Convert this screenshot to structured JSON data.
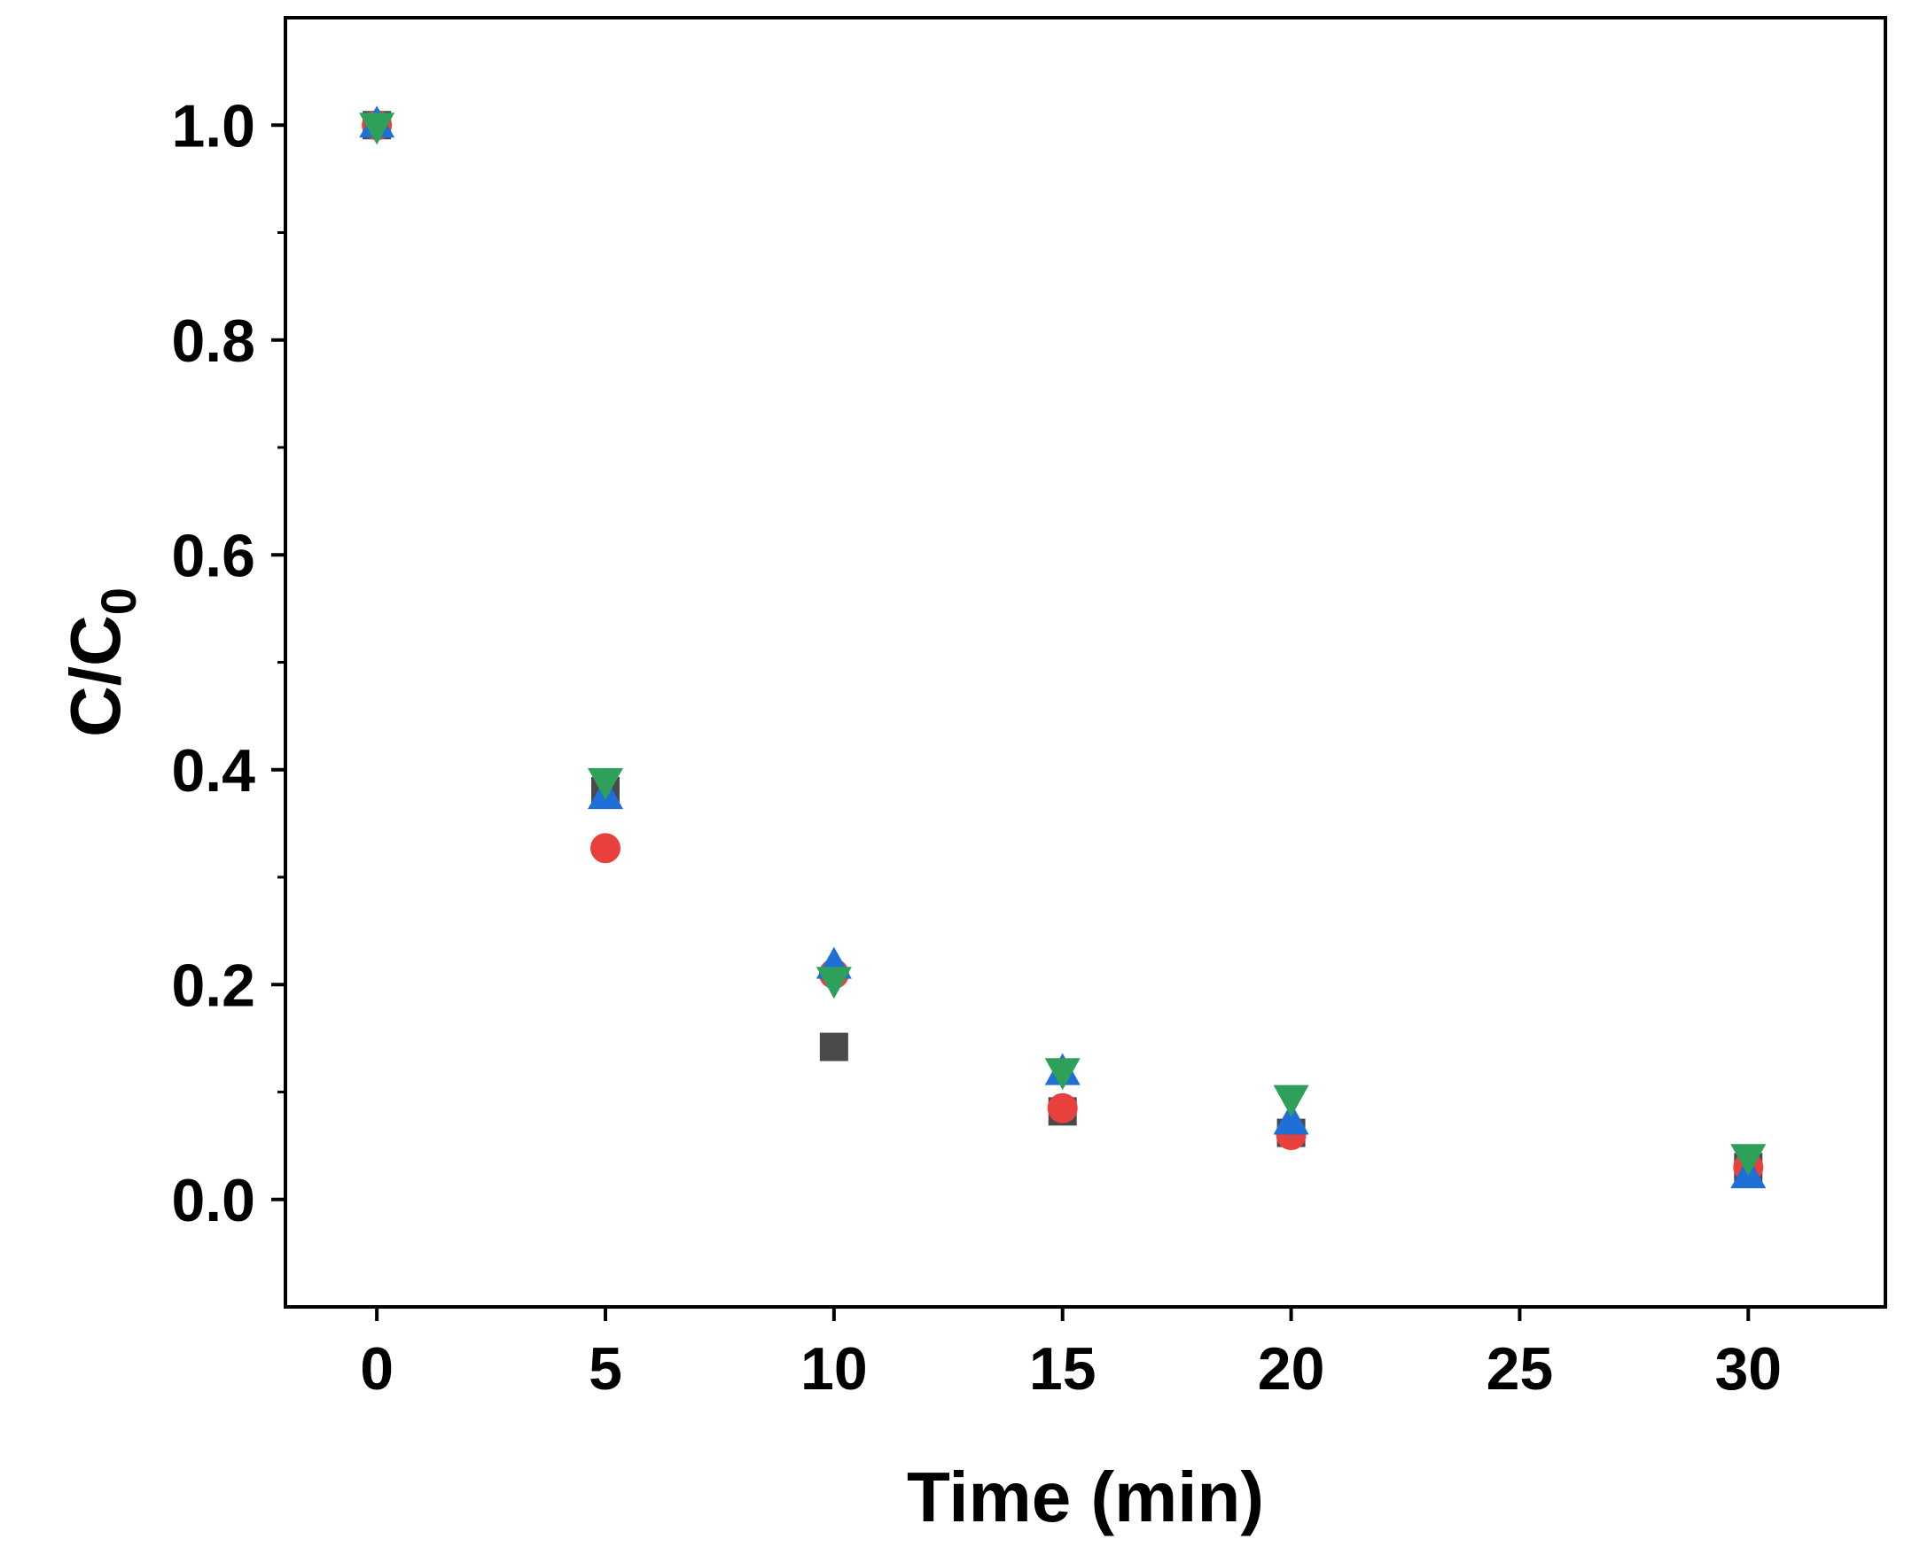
{
  "chart_data": {
    "type": "scatter",
    "title": "",
    "xlabel": "Time (min)",
    "ylabel": {
      "main": "C/C",
      "subscript": "0"
    },
    "xlim": [
      -2,
      33
    ],
    "ylim": [
      -0.1,
      1.1
    ],
    "xticks": [
      0,
      5,
      10,
      15,
      20,
      25,
      30
    ],
    "xtick_labels": [
      "0",
      "5",
      "10",
      "15",
      "20",
      "25",
      "30"
    ],
    "yticks": [
      0.0,
      0.2,
      0.4,
      0.6,
      0.8,
      1.0
    ],
    "ytick_labels": [
      "0.0",
      "0.2",
      "0.4",
      "0.6",
      "0.8",
      "1.0"
    ],
    "y_minor_ticks": [
      0.1,
      0.3,
      0.5,
      0.7,
      0.9
    ],
    "grid": false,
    "legend": "none",
    "series": [
      {
        "marker": "square",
        "color": "#4a4a4a",
        "x": [
          0,
          5,
          10,
          15,
          20,
          30
        ],
        "y": [
          1.0,
          0.38,
          0.142,
          0.082,
          0.062,
          0.03
        ]
      },
      {
        "marker": "circle",
        "color": "#e8403c",
        "x": [
          0,
          5,
          10,
          15,
          20,
          30
        ],
        "y": [
          1.0,
          0.327,
          0.21,
          0.085,
          0.06,
          0.03
        ]
      },
      {
        "marker": "triangle-up",
        "color": "#1f6fd6",
        "x": [
          0,
          5,
          10,
          15,
          20,
          30
        ],
        "y": [
          1.0,
          0.375,
          0.217,
          0.118,
          0.072,
          0.022
        ]
      },
      {
        "marker": "triangle-down",
        "color": "#2ea05a",
        "x": [
          0,
          5,
          10,
          15,
          20,
          30
        ],
        "y": [
          1.0,
          0.39,
          0.205,
          0.12,
          0.095,
          0.04
        ]
      }
    ]
  }
}
